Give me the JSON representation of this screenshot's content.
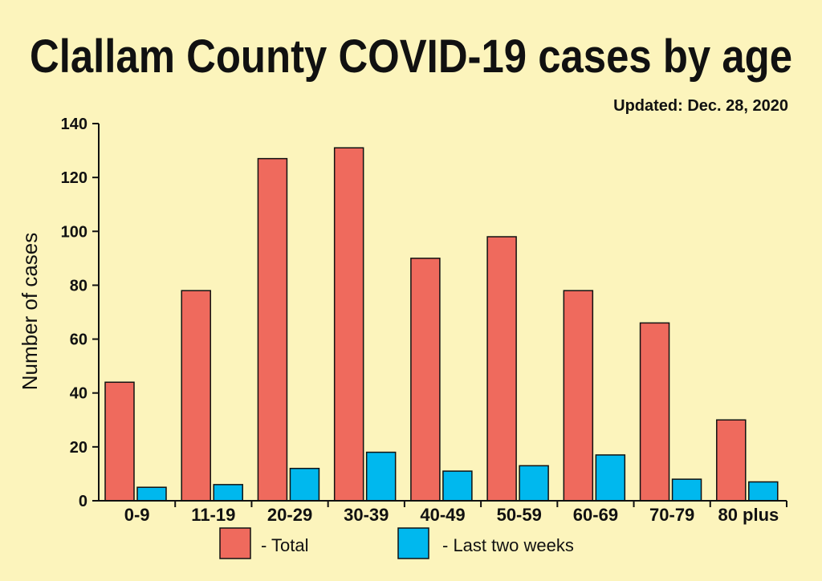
{
  "chart_data": {
    "type": "bar",
    "title": "Clallam County COVID-19 cases by age",
    "subtitle": "Updated: Dec. 28, 2020",
    "xlabel": "",
    "ylabel": "Number of cases",
    "ylim": [
      0,
      140
    ],
    "yticks": [
      0,
      20,
      40,
      60,
      80,
      100,
      120,
      140
    ],
    "categories": [
      "0-9",
      "11-19",
      "20-29",
      "30-39",
      "40-49",
      "50-59",
      "60-69",
      "70-79",
      "80 plus"
    ],
    "series": [
      {
        "name": "- Total",
        "color": "#ef6a5d",
        "values": [
          44,
          78,
          127,
          131,
          90,
          98,
          78,
          66,
          30
        ]
      },
      {
        "name": "- Last two weeks",
        "color": "#00b8ee",
        "values": [
          5,
          6,
          12,
          18,
          11,
          13,
          17,
          8,
          7
        ]
      }
    ],
    "legend_position": "bottom"
  }
}
